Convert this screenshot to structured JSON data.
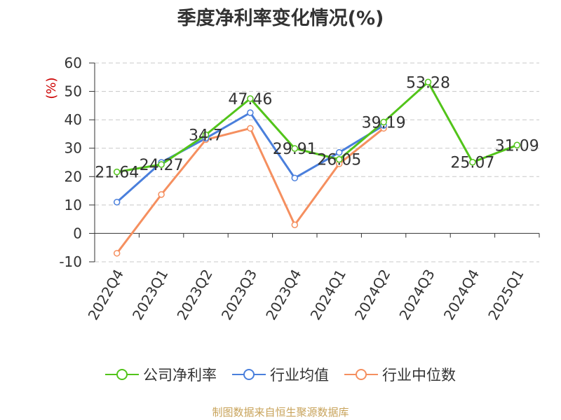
{
  "chart_data": {
    "type": "line",
    "title": "季度净利率变化情况(%)",
    "ylabel": "(%)",
    "ylim": [
      -10,
      60
    ],
    "yticks": [
      -10,
      0,
      10,
      20,
      30,
      40,
      50,
      60
    ],
    "grid": true,
    "legend_position": "bottom",
    "categories": [
      "2022Q4",
      "2023Q1",
      "2023Q2",
      "2023Q3",
      "2023Q4",
      "2024Q1",
      "2024Q2",
      "2024Q3",
      "2024Q4",
      "2025Q1"
    ],
    "series": [
      {
        "name": "公司净利率",
        "color": "#52c41a",
        "values": [
          21.64,
          24.27,
          34.7,
          47.46,
          29.91,
          26.05,
          39.19,
          53.28,
          25.07,
          31.09
        ],
        "labels": [
          "21.64",
          "24.27",
          "34.7",
          "47.46",
          "29.91",
          "26.05",
          "39.19",
          "53.28",
          "25.07",
          "31.09"
        ]
      },
      {
        "name": "行业均值",
        "color": "#4a7fdc",
        "values": [
          11,
          25,
          33.5,
          42.5,
          19.5,
          28.5,
          38,
          null,
          null,
          null
        ]
      },
      {
        "name": "行业中位数",
        "color": "#f58f5f",
        "values": [
          -7,
          13.7,
          33,
          37,
          3,
          24.5,
          37,
          null,
          null,
          null
        ]
      }
    ]
  },
  "source_text": "制图数据来自恒生聚源数据库"
}
